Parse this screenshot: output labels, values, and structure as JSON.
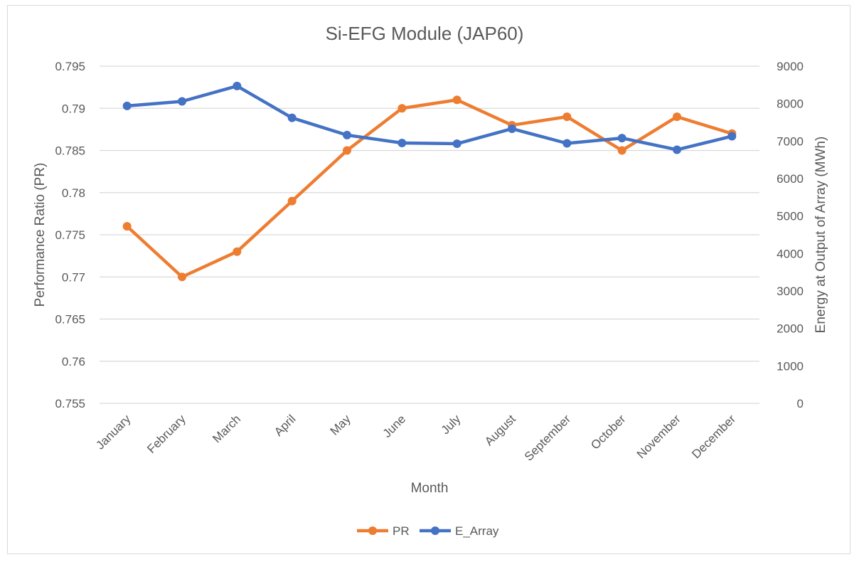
{
  "chart_data": {
    "type": "line",
    "title": "Si-EFG Module (JAP60)",
    "xlabel": "Month",
    "ylabel_left": "Performance Ratio (PR)",
    "ylabel_right": "Energy at Output of Array (MWh)",
    "categories": [
      "January",
      "February",
      "March",
      "April",
      "May",
      "June",
      "July",
      "August",
      "September",
      "October",
      "November",
      "December"
    ],
    "y_left": {
      "lim": [
        0.755,
        0.795
      ],
      "ticks": [
        0.795,
        0.79,
        0.785,
        0.78,
        0.775,
        0.77,
        0.765,
        0.76,
        0.755
      ],
      "tick_labels": [
        "0.795",
        "0.79",
        "0.785",
        "0.78",
        "0.775",
        "0.77",
        "0.765",
        "0.76",
        "0.755"
      ]
    },
    "y_right": {
      "lim": [
        0,
        9000
      ],
      "ticks": [
        9000,
        8000,
        7000,
        6000,
        5000,
        4000,
        3000,
        2000,
        1000,
        0
      ],
      "tick_labels": [
        "9000",
        "8000",
        "7000",
        "6000",
        "5000",
        "4000",
        "3000",
        "2000",
        "1000",
        "0"
      ]
    },
    "series": [
      {
        "name": "PR",
        "axis": "left",
        "color": "#ed7d31",
        "values": [
          0.776,
          0.77,
          0.773,
          0.779,
          0.785,
          0.79,
          0.791,
          0.788,
          0.789,
          0.785,
          0.789,
          0.787
        ]
      },
      {
        "name": "E_Array",
        "axis": "right",
        "color": "#4472c4",
        "values": [
          7940,
          8060,
          8470,
          7620,
          7160,
          6950,
          6930,
          7330,
          6940,
          7080,
          6770,
          7130
        ]
      }
    ],
    "grid": true,
    "legend_position": "bottom"
  }
}
